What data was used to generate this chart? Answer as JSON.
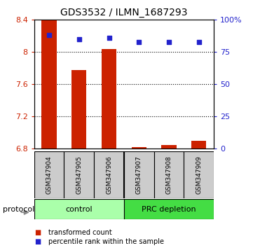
{
  "title": "GDS3532 / ILMN_1687293",
  "samples": [
    "GSM347904",
    "GSM347905",
    "GSM347906",
    "GSM347907",
    "GSM347908",
    "GSM347909"
  ],
  "transformed_counts": [
    8.4,
    7.78,
    8.04,
    6.82,
    6.85,
    6.9
  ],
  "percentile_ranks": [
    88,
    85,
    86,
    83,
    83,
    83
  ],
  "ylim_left": [
    6.8,
    8.4
  ],
  "ylim_right": [
    0,
    100
  ],
  "yticks_left": [
    6.8,
    7.2,
    7.6,
    8.0,
    8.4
  ],
  "yticks_right": [
    0,
    25,
    50,
    75,
    100
  ],
  "ytick_labels_left": [
    "6.8",
    "7.2",
    "7.6",
    "8",
    "8.4"
  ],
  "ytick_labels_right": [
    "0",
    "25",
    "50",
    "75",
    "100%"
  ],
  "groups": [
    {
      "label": "control",
      "n": 3,
      "color": "#aaffaa"
    },
    {
      "label": "PRC depletion",
      "n": 3,
      "color": "#44dd44"
    }
  ],
  "bar_color": "#cc2200",
  "dot_color": "#2222cc",
  "bar_width": 0.5,
  "protocol_label": "protocol",
  "legend_items": [
    {
      "color": "#cc2200",
      "label": "transformed count"
    },
    {
      "color": "#2222cc",
      "label": "percentile rank within the sample"
    }
  ],
  "sample_bg": "#cccccc",
  "grid_dotted_at": [
    7.2,
    7.6,
    8.0
  ],
  "dot_size": 22
}
